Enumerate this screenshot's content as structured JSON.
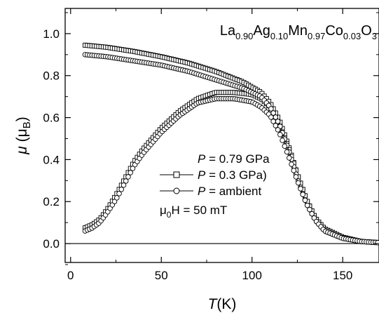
{
  "chart_data": {
    "type": "scatter",
    "title": "",
    "compound": {
      "parts": [
        {
          "t": "La",
          "sub": "0.90"
        },
        {
          "t": "Ag",
          "sub": "0.10"
        },
        {
          "t": "Mn",
          "sub": "0.97"
        },
        {
          "t": "Co",
          "sub": "0.03"
        },
        {
          "t": "O",
          "sub": "3"
        }
      ]
    },
    "xlabel": {
      "var": "T",
      "unit": "(K)"
    },
    "ylabel": {
      "var": "μ",
      "unit_open": " (μ",
      "unit_sub": "B",
      "unit_close": ")"
    },
    "xlim": [
      -3,
      170
    ],
    "ylim": [
      -0.09,
      1.12
    ],
    "xticks": [
      0,
      50,
      100,
      150
    ],
    "xtick_labels": [
      "0",
      "50",
      "100",
      "150"
    ],
    "yticks": [
      0.0,
      0.2,
      0.4,
      0.6,
      0.8,
      1.0
    ],
    "ytick_labels": [
      "0.0",
      "0.2",
      "0.4",
      "0.6",
      "0.8",
      "1.0"
    ],
    "zero_line": true,
    "grid": false,
    "legend_position": "center-right",
    "legend": [
      {
        "var": "P",
        "text": " = 0.79 GPa",
        "marker": "none"
      },
      {
        "var": "P",
        "text": " = 0.3   GPa)",
        "marker": "square"
      },
      {
        "var": "P",
        "text": " =  ambient",
        "marker": "circle"
      }
    ],
    "field_label": {
      "pre": "μ",
      "sub": "0",
      "post": "H = 50 mT"
    },
    "series": [
      {
        "marker": "square",
        "branch": "FC",
        "x": [
          8,
          20,
          35,
          50,
          65,
          80,
          95,
          105,
          110,
          115,
          120,
          125,
          130,
          135,
          140,
          150,
          160,
          170
        ],
        "y": [
          0.945,
          0.935,
          0.915,
          0.89,
          0.86,
          0.82,
          0.77,
          0.72,
          0.67,
          0.59,
          0.47,
          0.33,
          0.21,
          0.12,
          0.07,
          0.03,
          0.01,
          0.005
        ]
      },
      {
        "marker": "square",
        "branch": "ZFC",
        "x": [
          8,
          12,
          16,
          20,
          25,
          30,
          35,
          40,
          50,
          60,
          70,
          80,
          90,
          100,
          105,
          110,
          115,
          120,
          125,
          130,
          135,
          140,
          150,
          160,
          170
        ],
        "y": [
          0.075,
          0.09,
          0.115,
          0.16,
          0.23,
          0.31,
          0.39,
          0.45,
          0.55,
          0.63,
          0.69,
          0.72,
          0.72,
          0.71,
          0.69,
          0.65,
          0.57,
          0.46,
          0.33,
          0.21,
          0.12,
          0.07,
          0.03,
          0.01,
          0.005
        ]
      },
      {
        "marker": "circle",
        "branch": "FC",
        "x": [
          8,
          20,
          35,
          50,
          65,
          80,
          95,
          105,
          110,
          115,
          120,
          125,
          130,
          135,
          140,
          150,
          160,
          170
        ],
        "y": [
          0.9,
          0.89,
          0.87,
          0.85,
          0.82,
          0.78,
          0.74,
          0.7,
          0.65,
          0.57,
          0.45,
          0.31,
          0.19,
          0.11,
          0.06,
          0.025,
          0.01,
          0.004
        ]
      },
      {
        "marker": "circle",
        "branch": "ZFC",
        "x": [
          8,
          12,
          16,
          20,
          25,
          30,
          35,
          40,
          50,
          60,
          70,
          80,
          90,
          100,
          105,
          110,
          115,
          120,
          125,
          130,
          135,
          140,
          150,
          160,
          170
        ],
        "y": [
          0.06,
          0.075,
          0.1,
          0.145,
          0.21,
          0.29,
          0.37,
          0.43,
          0.53,
          0.61,
          0.67,
          0.69,
          0.69,
          0.675,
          0.65,
          0.61,
          0.53,
          0.42,
          0.3,
          0.19,
          0.11,
          0.06,
          0.025,
          0.01,
          0.004
        ]
      }
    ]
  }
}
